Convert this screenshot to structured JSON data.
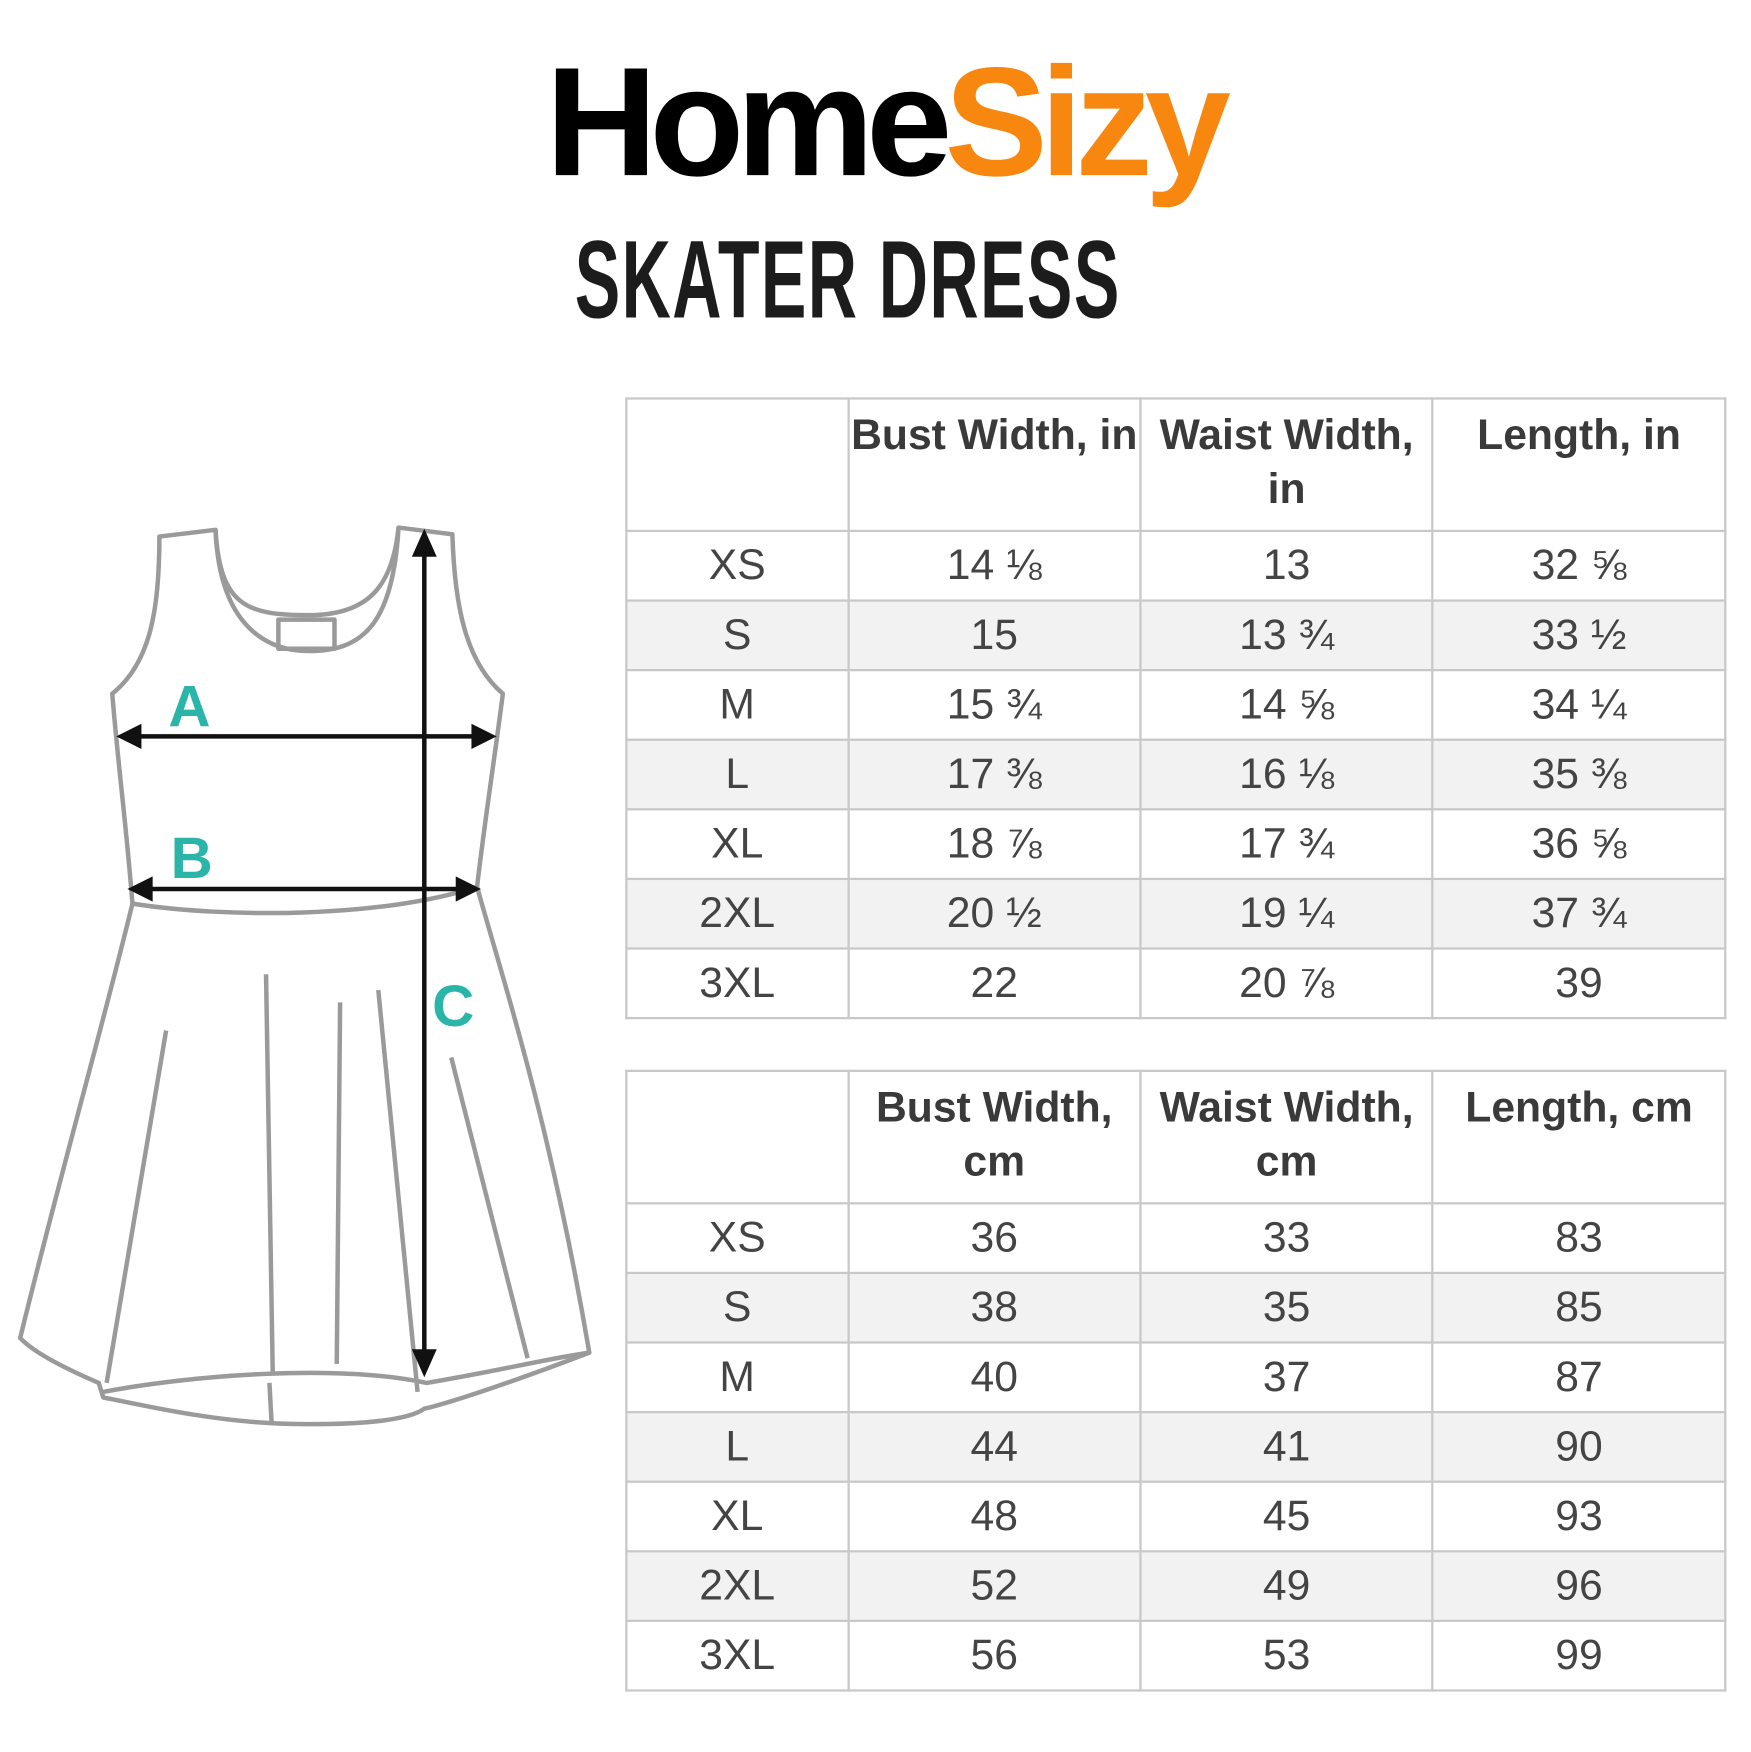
{
  "brand": {
    "part1": "Home",
    "part2": "Sizy",
    "accent_color": "#f7870f"
  },
  "title": "SKATER DRESS",
  "diagram": {
    "labels": {
      "a": "A",
      "b": "B",
      "c": "C"
    },
    "label_color": "#2bb5a8",
    "outline_color": "#9a9a9a"
  },
  "table_inches": {
    "headers": [
      "",
      "Bust Width, in",
      "Waist Width, in",
      "Length, in"
    ],
    "rows": [
      [
        "XS",
        "14 ⅛",
        "13",
        "32 ⅝"
      ],
      [
        "S",
        "15",
        "13 ¾",
        "33 ½"
      ],
      [
        "M",
        "15 ¾",
        "14 ⅝",
        "34 ¼"
      ],
      [
        "L",
        "17 ⅜",
        "16 ⅛",
        "35 ⅜"
      ],
      [
        "XL",
        "18 ⅞",
        "17 ¾",
        "36 ⅝"
      ],
      [
        "2XL",
        "20 ½",
        "19 ¼",
        "37 ¾"
      ],
      [
        "3XL",
        "22",
        "20 ⅞",
        "39"
      ]
    ]
  },
  "table_cm": {
    "headers": [
      "",
      "Bust Width, cm",
      "Waist Width, cm",
      "Length, cm"
    ],
    "rows": [
      [
        "XS",
        "36",
        "33",
        "83"
      ],
      [
        "S",
        "38",
        "35",
        "85"
      ],
      [
        "M",
        "40",
        "37",
        "87"
      ],
      [
        "L",
        "44",
        "41",
        "90"
      ],
      [
        "XL",
        "48",
        "45",
        "93"
      ],
      [
        "2XL",
        "52",
        "49",
        "96"
      ],
      [
        "3XL",
        "56",
        "53",
        "99"
      ]
    ]
  }
}
